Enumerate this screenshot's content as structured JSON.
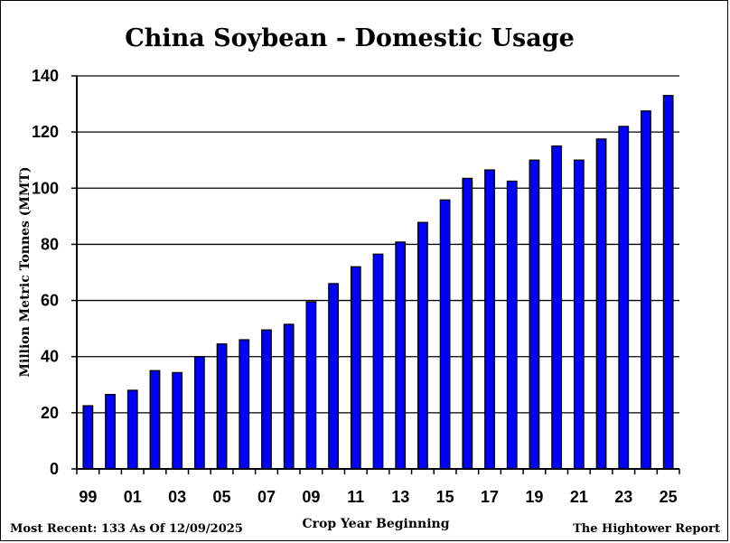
{
  "chart_data": {
    "type": "bar",
    "title": "China Soybean - Domestic Usage",
    "xlabel": "Crop Year Beginning",
    "ylabel": "Million Metric Tonnes (MMT)",
    "ylim": [
      0,
      140
    ],
    "yticks": [
      0,
      20,
      40,
      60,
      80,
      100,
      120,
      140
    ],
    "grid": true,
    "bar_color": "#0000ff",
    "categories": [
      "99",
      "00",
      "01",
      "02",
      "03",
      "04",
      "05",
      "06",
      "07",
      "08",
      "09",
      "10",
      "11",
      "12",
      "13",
      "14",
      "15",
      "16",
      "17",
      "18",
      "19",
      "20",
      "21",
      "22",
      "23",
      "24",
      "25"
    ],
    "xtick_labels": [
      "99",
      "01",
      "03",
      "05",
      "07",
      "09",
      "11",
      "13",
      "15",
      "17",
      "19",
      "21",
      "23",
      "25"
    ],
    "values": [
      22.5,
      26.5,
      28,
      35,
      34.3,
      40,
      44.5,
      46,
      49.5,
      51.5,
      59.5,
      66,
      72,
      76.5,
      80.8,
      87.8,
      95.8,
      103.5,
      106.5,
      102.5,
      110,
      115,
      110,
      117.5,
      122,
      127.5,
      133
    ]
  },
  "footer": {
    "left": "Most Recent: 133 As Of 12/09/2025",
    "right": "The Hightower Report"
  }
}
